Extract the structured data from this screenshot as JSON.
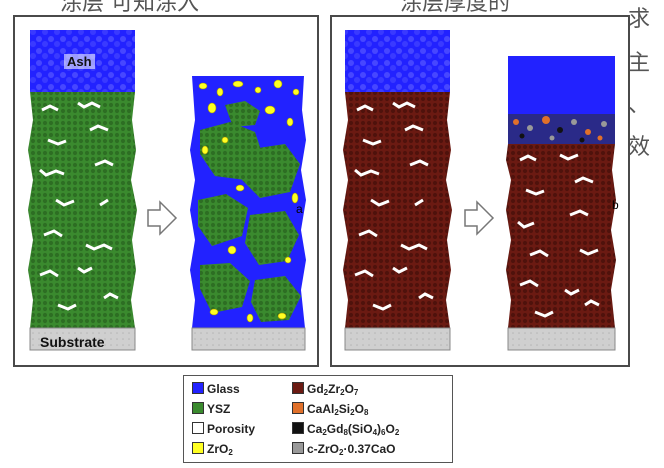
{
  "background_text": {
    "line1_left": "涂层 可知涂入",
    "line1_right": "涂层厚度的",
    "col_right": [
      "求",
      "主",
      "、",
      "效"
    ]
  },
  "panel_left": {
    "top_label": "Ash",
    "bottom_label": "Substrate",
    "tag": "a"
  },
  "panel_right": {
    "tag": "b"
  },
  "legend": {
    "items": [
      {
        "color": "#2222ff",
        "text": "Glass"
      },
      {
        "color": "#3a8a2e",
        "text": "YSZ"
      },
      {
        "color": "#ffffff",
        "text": "Porosity"
      },
      {
        "color": "#ffff22",
        "text": "ZrO",
        "sub": "2"
      },
      {
        "color": "#6b1a12",
        "parts": [
          "Gd",
          "2",
          "Zr",
          "2",
          "O",
          "7"
        ]
      },
      {
        "color": "#e0702a",
        "parts": [
          "CaAl",
          "2",
          "Si",
          "2",
          "O",
          "8"
        ]
      },
      {
        "color": "#111111",
        "parts": [
          "Ca",
          "2",
          "Gd",
          "8",
          "(SiO",
          "4",
          ")",
          "6",
          "O",
          "2"
        ]
      },
      {
        "color": "#999999",
        "text": "c-ZrO",
        "sub": "2",
        "suffix": "·0.37CaO"
      }
    ]
  },
  "colors": {
    "glass": "#2222ff",
    "ysz": "#3a8a2e",
    "gzo": "#6b1a12",
    "zro2": "#ffff22",
    "substrate": "#cccccc"
  }
}
